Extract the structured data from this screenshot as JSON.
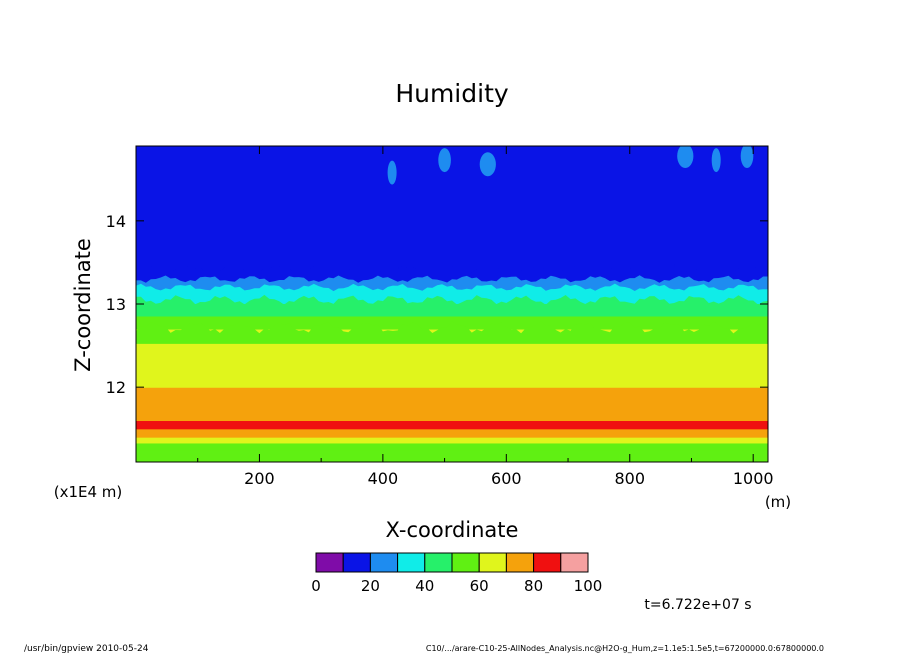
{
  "chart_data": {
    "type": "heatmap",
    "title": "Humidity",
    "xlabel": "X-coordinate",
    "ylabel": "Z-coordinate",
    "x_unit": "(m)",
    "y_unit": "(x1E4 m)",
    "xlim": [
      0,
      1024
    ],
    "ylim": [
      11.1,
      14.9
    ],
    "x_ticks": [
      200,
      400,
      600,
      800,
      1000
    ],
    "y_ticks": [
      12,
      13,
      14
    ],
    "x_tick_labels": [
      "200",
      "400",
      "600",
      "800",
      "1000"
    ],
    "y_tick_labels": [
      "12",
      "13",
      "14"
    ],
    "grid": false,
    "colorbar": {
      "levels": [
        0,
        10,
        20,
        30,
        40,
        50,
        60,
        70,
        80,
        90,
        100
      ],
      "labels": [
        "0",
        "20",
        "40",
        "60",
        "80",
        "100"
      ],
      "colors": [
        "#7f0ca8",
        "#0a14e6",
        "#1e8cf0",
        "#10ece8",
        "#26f06a",
        "#60f013",
        "#e0f51c",
        "#f5a20c",
        "#f01010",
        "#f5a0a0"
      ]
    },
    "profile": [
      {
        "z": 11.1,
        "value": 55
      },
      {
        "z": 11.25,
        "value": 58
      },
      {
        "z": 11.33,
        "value": 68
      },
      {
        "z": 11.4,
        "value": 75
      },
      {
        "z": 11.5,
        "value": 85
      },
      {
        "z": 11.6,
        "value": 75
      },
      {
        "z": 11.67,
        "value": 70
      },
      {
        "z": 12.0,
        "value": 65
      },
      {
        "z": 12.5,
        "value": 62
      },
      {
        "z": 12.7,
        "value": 55
      },
      {
        "z": 13.0,
        "value": 45
      },
      {
        "z": 13.1,
        "value": 35
      },
      {
        "z": 13.2,
        "value": 25
      },
      {
        "z": 13.35,
        "value": 15
      },
      {
        "z": 14.9,
        "value": 5
      }
    ]
  },
  "time_label": "t=6.722e+07 s",
  "footer_left": "/usr/bin/gpview   2010-05-24",
  "footer_right": "C10/.../arare-C10-25-AllNodes_Analysis.nc@H2O-g_Hum,z=1.1e5:1.5e5,t=67200000.0:67800000.0"
}
